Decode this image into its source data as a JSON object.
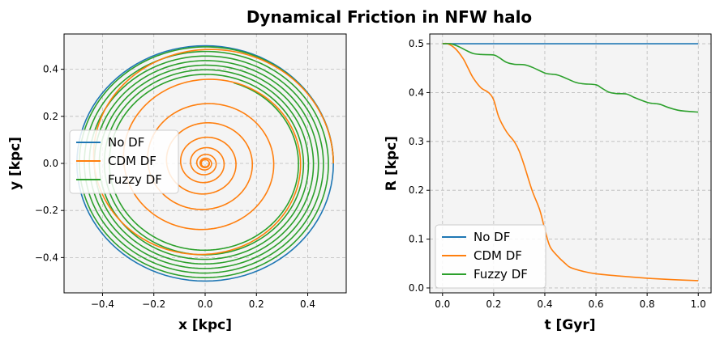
{
  "figure": {
    "title": "Dynamical Friction in NFW halo"
  },
  "colors": {
    "no_df": "#1f77b4",
    "cdm_df": "#ff7f0e",
    "fuzzy_df": "#2ca02c",
    "axes_bg": "#f4f4f4",
    "grid": "#bbbbbb"
  },
  "chart_data": [
    {
      "type": "line",
      "panel": "orbits",
      "xlabel": "x [kpc]",
      "ylabel": "y [kpc]",
      "xlim": [
        -0.55,
        0.55
      ],
      "ylim": [
        -0.55,
        0.55
      ],
      "xticks": [
        -0.4,
        -0.2,
        0.0,
        0.2,
        0.4
      ],
      "yticks": [
        -0.4,
        -0.2,
        0.0,
        0.2,
        0.4
      ],
      "xtick_labels": [
        "−0.4",
        "−0.2",
        "0.0",
        "0.2",
        "0.4"
      ],
      "ytick_labels": [
        "−0.4",
        "−0.2",
        "0.0",
        "0.2",
        "0.4"
      ],
      "grid": true,
      "legend": "center-left",
      "series": [
        {
          "name": "No DF",
          "description": "circular orbit",
          "radius": 0.5
        },
        {
          "name": "CDM DF",
          "description": "spiral from R=0.5 to R≈0.015"
        },
        {
          "name": "Fuzzy DF",
          "description": "slow spiral from R=0.5 to R≈0.36"
        }
      ]
    },
    {
      "type": "line",
      "panel": "radius",
      "xlabel": "t [Gyr]",
      "ylabel": "R [kpc]",
      "xlim": [
        -0.05,
        1.05
      ],
      "ylim": [
        -0.01,
        0.52
      ],
      "xticks": [
        0.0,
        0.2,
        0.4,
        0.6,
        0.8,
        1.0
      ],
      "yticks": [
        0.0,
        0.1,
        0.2,
        0.3,
        0.4,
        0.5
      ],
      "xtick_labels": [
        "0.0",
        "0.2",
        "0.4",
        "0.6",
        "0.8",
        "1.0"
      ],
      "ytick_labels": [
        "0.0",
        "0.1",
        "0.2",
        "0.3",
        "0.4",
        "0.5"
      ],
      "grid": true,
      "legend": "lower-left",
      "series": [
        {
          "name": "No DF",
          "t": [
            0.0,
            1.0
          ],
          "R": [
            0.5,
            0.5
          ]
        },
        {
          "name": "CDM DF",
          "t": [
            0.0,
            0.02,
            0.05,
            0.08,
            0.1,
            0.12,
            0.15,
            0.18,
            0.2,
            0.22,
            0.25,
            0.28,
            0.3,
            0.32,
            0.35,
            0.38,
            0.4,
            0.42,
            0.45,
            0.48,
            0.5,
            0.55,
            0.6,
            0.7,
            0.8,
            0.9,
            1.0
          ],
          "R": [
            0.5,
            0.5,
            0.49,
            0.47,
            0.45,
            0.43,
            0.41,
            0.4,
            0.385,
            0.35,
            0.32,
            0.3,
            0.28,
            0.25,
            0.2,
            0.16,
            0.12,
            0.085,
            0.065,
            0.05,
            0.042,
            0.034,
            0.029,
            0.024,
            0.02,
            0.017,
            0.015
          ]
        },
        {
          "name": "Fuzzy DF",
          "t": [
            0.0,
            0.03,
            0.06,
            0.09,
            0.12,
            0.15,
            0.2,
            0.22,
            0.25,
            0.28,
            0.32,
            0.35,
            0.4,
            0.42,
            0.45,
            0.48,
            0.52,
            0.55,
            0.6,
            0.62,
            0.65,
            0.68,
            0.72,
            0.75,
            0.8,
            0.82,
            0.85,
            0.88,
            0.92,
            0.95,
            1.0
          ],
          "R": [
            0.5,
            0.5,
            0.495,
            0.487,
            0.48,
            0.478,
            0.477,
            0.472,
            0.462,
            0.458,
            0.457,
            0.452,
            0.44,
            0.438,
            0.436,
            0.43,
            0.421,
            0.418,
            0.416,
            0.41,
            0.401,
            0.398,
            0.397,
            0.39,
            0.38,
            0.378,
            0.376,
            0.37,
            0.364,
            0.362,
            0.36
          ]
        }
      ]
    }
  ]
}
